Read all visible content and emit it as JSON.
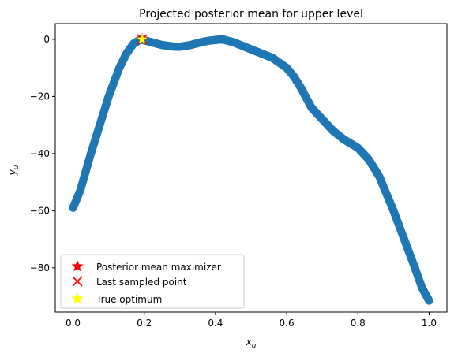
{
  "chart_data": {
    "type": "scatter",
    "title": "Projected posterior mean for upper level",
    "xlabel": {
      "base": "x",
      "sub": "u"
    },
    "ylabel": {
      "base": "y",
      "sub": "u"
    },
    "xlim": [
      -0.05,
      1.05
    ],
    "ylim": [
      -95.5,
      5.5
    ],
    "xticks": [
      0.0,
      0.2,
      0.4,
      0.6,
      0.8,
      1.0
    ],
    "xtick_labels": [
      "0.0",
      "0.2",
      "0.4",
      "0.6",
      "0.8",
      "1.0"
    ],
    "yticks": [
      0,
      -20,
      -40,
      -60,
      -80
    ],
    "ytick_labels": [
      "0",
      "−20",
      "−40",
      "−60",
      "−80"
    ],
    "grid": false,
    "legend_position": "lower-left",
    "series": [
      {
        "name": "",
        "marker": "circle",
        "color": "#1f77b4",
        "knots": [
          [
            0.0,
            -59.0
          ],
          [
            0.02,
            -53.0
          ],
          [
            0.05,
            -40.0
          ],
          [
            0.08,
            -28.0
          ],
          [
            0.1,
            -20.0
          ],
          [
            0.13,
            -10.0
          ],
          [
            0.15,
            -5.0
          ],
          [
            0.17,
            -1.5
          ],
          [
            0.19,
            0.0
          ],
          [
            0.22,
            -1.0
          ],
          [
            0.25,
            -2.0
          ],
          [
            0.28,
            -2.5
          ],
          [
            0.3,
            -2.6
          ],
          [
            0.33,
            -2.0
          ],
          [
            0.36,
            -1.0
          ],
          [
            0.38,
            -0.5
          ],
          [
            0.4,
            -0.2
          ],
          [
            0.42,
            0.0
          ],
          [
            0.45,
            -1.0
          ],
          [
            0.48,
            -2.5
          ],
          [
            0.52,
            -4.5
          ],
          [
            0.56,
            -6.5
          ],
          [
            0.6,
            -10.0
          ],
          [
            0.62,
            -13.0
          ],
          [
            0.64,
            -17.0
          ],
          [
            0.67,
            -24.0
          ],
          [
            0.7,
            -28.0
          ],
          [
            0.73,
            -32.0
          ],
          [
            0.76,
            -35.0
          ],
          [
            0.8,
            -38.0
          ],
          [
            0.83,
            -42.0
          ],
          [
            0.86,
            -48.0
          ],
          [
            0.9,
            -60.0
          ],
          [
            0.93,
            -70.0
          ],
          [
            0.96,
            -80.0
          ],
          [
            0.98,
            -87.0
          ],
          [
            1.0,
            -91.5
          ]
        ]
      },
      {
        "name": "Posterior mean maximizer",
        "marker": "star",
        "color": "#ff0000",
        "points": [
          [
            0.194,
            0.0
          ]
        ]
      },
      {
        "name": "Last sampled point",
        "marker": "x",
        "color": "#ff0000",
        "points": [
          [
            0.194,
            0.0
          ]
        ]
      },
      {
        "name": "True optimum",
        "marker": "star",
        "color": "#ffff00",
        "points": [
          [
            0.194,
            0.0
          ]
        ]
      }
    ]
  }
}
